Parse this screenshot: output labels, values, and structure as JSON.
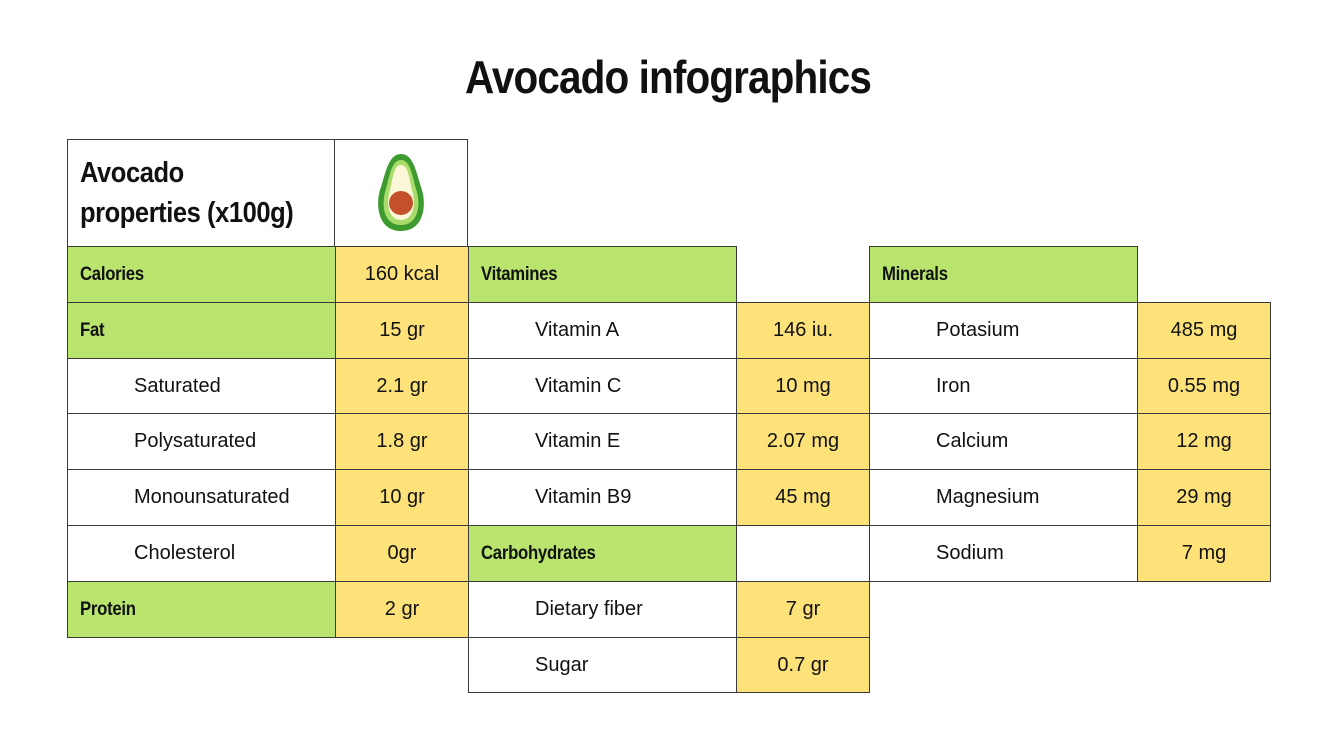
{
  "title": "Avocado infographics",
  "header": {
    "label": "Avocado properties (x100g)",
    "icon": "avocado-icon"
  },
  "colors": {
    "header_green": "#b9e56f",
    "value_yellow": "#fde27a",
    "border": "#3a3a3a"
  },
  "tables": [
    {
      "rows": [
        {
          "label": "Calories",
          "value": "160 kcal",
          "kind": "header"
        },
        {
          "label": "Fat",
          "value": "15 gr",
          "kind": "header"
        },
        {
          "label": "Saturated",
          "value": "2.1 gr",
          "kind": "item"
        },
        {
          "label": "Polysaturated",
          "value": "1.8 gr",
          "kind": "item"
        },
        {
          "label": "Monounsaturated",
          "value": "10 gr",
          "kind": "item"
        },
        {
          "label": "Cholesterol",
          "value": "0gr",
          "kind": "item"
        },
        {
          "label": "Protein",
          "value": "2 gr",
          "kind": "header"
        }
      ]
    },
    {
      "rows": [
        {
          "label": "Vitamines",
          "value": null,
          "kind": "section"
        },
        {
          "label": "Vitamin A",
          "value": "146 iu.",
          "kind": "item"
        },
        {
          "label": "Vitamin C",
          "value": "10 mg",
          "kind": "item"
        },
        {
          "label": "Vitamin E",
          "value": "2.07 mg",
          "kind": "item"
        },
        {
          "label": "Vitamin B9",
          "value": "45 mg",
          "kind": "item"
        },
        {
          "label": "Carbohydrates",
          "value": "",
          "kind": "section-boxed"
        },
        {
          "label": "Dietary fiber",
          "value": "7 gr",
          "kind": "item"
        },
        {
          "label": "Sugar",
          "value": "0.7 gr",
          "kind": "item"
        }
      ]
    },
    {
      "rows": [
        {
          "label": "Minerals",
          "value": null,
          "kind": "section"
        },
        {
          "label": "Potasium",
          "value": "485 mg",
          "kind": "item"
        },
        {
          "label": "Iron",
          "value": "0.55 mg",
          "kind": "item"
        },
        {
          "label": "Calcium",
          "value": "12 mg",
          "kind": "item"
        },
        {
          "label": "Magnesium",
          "value": "29 mg",
          "kind": "item"
        },
        {
          "label": "Sodium",
          "value": "7 mg",
          "kind": "item"
        }
      ]
    }
  ]
}
